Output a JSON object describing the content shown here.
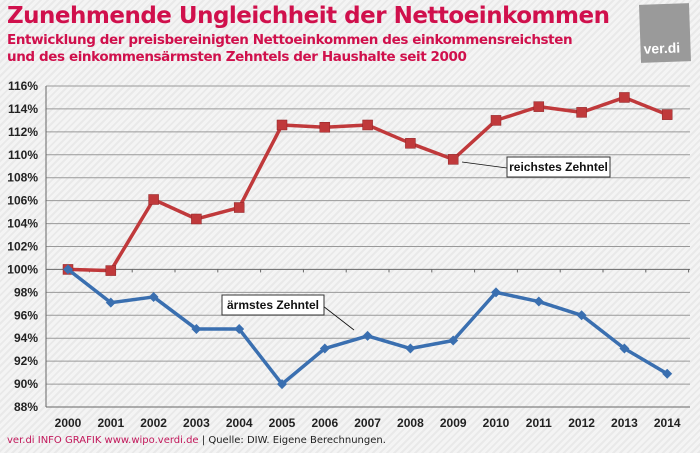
{
  "header": {
    "title": "Zunehmende Ungleichheit der Nettoeinkommen",
    "subtitle_line1": "Entwicklung der preisbereinigten Nettoeinkommen des einkommensreichsten",
    "subtitle_line2": "und des einkommensärmsten Zehntels der Haushalte seit 2000",
    "logo_text": "ver.di"
  },
  "footer": {
    "source_brand": "ver.di INFO GRAFIK www.wipo.verdi.de",
    "separator": "|",
    "source_text": "Quelle: DIW. Eigene Berechnungen."
  },
  "colors": {
    "title": "#d0104c",
    "rich": "#c0393b",
    "poor": "#3a6fb0",
    "logo": "#9a9a9a"
  },
  "chart_data": {
    "type": "line",
    "title": "Zunehmende Ungleichheit der Nettoeinkommen",
    "categories": [
      "2000",
      "2001",
      "2002",
      "2003",
      "2004",
      "2005",
      "2006",
      "2007",
      "2008",
      "2009",
      "2010",
      "2011",
      "2012",
      "2013",
      "2014"
    ],
    "ylim": [
      88,
      116
    ],
    "yticks": [
      "88%",
      "90%",
      "92%",
      "94%",
      "96%",
      "98%",
      "100%",
      "102%",
      "104%",
      "106%",
      "108%",
      "110%",
      "112%",
      "114%",
      "116%"
    ],
    "grid": true,
    "series": [
      {
        "name": "reichstes Zehntel",
        "marker": "square",
        "color": "#c0393b",
        "values": [
          100,
          99.9,
          106.1,
          104.4,
          105.4,
          112.6,
          112.4,
          112.6,
          111.0,
          109.6,
          113.0,
          114.2,
          113.7,
          115.0,
          113.5
        ]
      },
      {
        "name": "ärmstes Zehntel",
        "marker": "diamond",
        "color": "#3a6fb0",
        "values": [
          100,
          97.1,
          97.6,
          94.8,
          94.8,
          90.0,
          93.1,
          94.2,
          93.1,
          93.8,
          98.0,
          97.2,
          96.0,
          93.1,
          90.9
        ]
      }
    ]
  }
}
